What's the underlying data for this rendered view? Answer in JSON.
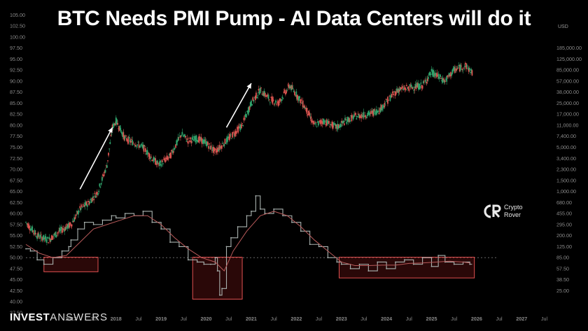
{
  "header": {
    "title": "BTC Needs PMI Pump - AI Data Centers will do it",
    "currency": "USD"
  },
  "watermark": {
    "brand_bold": "INVEST",
    "brand_thin": "ANSWERS",
    "logo_line1": "Crypto",
    "logo_line2": "Rover"
  },
  "colors": {
    "background": "#000000",
    "candle_up": "#2fa36b",
    "candle_down": "#d9534f",
    "pmi_line": "#aab3b0",
    "pmi_ma": "#b85a5a",
    "box_stroke": "#e05050",
    "box_fill": "rgba(150,30,30,0.28)",
    "arrow": "#ffffff",
    "axis_text": "#8a8a8a"
  },
  "chart_data": {
    "type": "line",
    "title": "BTC Needs PMI Pump - AI Data Centers will do it",
    "x_axis": {
      "ticks": [
        "2017",
        "Jul",
        "2018",
        "Jul",
        "2019",
        "Jul",
        "2020",
        "Jul",
        "2021",
        "Jul",
        "2022",
        "Jul",
        "2023",
        "Jul",
        "2024",
        "Jul",
        "2025",
        "Jul",
        "2026",
        "Jul",
        "2027",
        "Jul"
      ],
      "tick_x": [
        2017.0,
        2017.5,
        2018.0,
        2018.5,
        2019.0,
        2019.5,
        2020.0,
        2020.5,
        2021.0,
        2021.5,
        2022.0,
        2022.5,
        2023.0,
        2023.5,
        2024.0,
        2024.5,
        2025.0,
        2025.5,
        2026.0,
        2026.5,
        2027.0,
        2027.5
      ],
      "range": [
        2016.0,
        2027.85
      ]
    },
    "left_axis": {
      "label": "PMI",
      "range": [
        37.5,
        106.0
      ],
      "ticks": [
        105.0,
        102.5,
        100.0,
        97.5,
        95.0,
        92.5,
        90.0,
        87.5,
        85.0,
        82.5,
        80.0,
        77.5,
        75.0,
        72.5,
        70.0,
        67.5,
        65.0,
        62.5,
        60.0,
        57.5,
        55.0,
        52.5,
        50.0,
        47.5,
        45.0,
        42.5,
        40.0,
        37.5
      ],
      "reference_line": 50
    },
    "right_axis": {
      "label": "BTC price (USD, log scale)",
      "scale": "log",
      "ticks": [
        "185,000.00",
        "125,000.00",
        "85,000.00",
        "57,000.00",
        "38,000.00",
        "25,000.00",
        "17,000.00",
        "11,000.00",
        "7,400.00",
        "5,000.00",
        "3,400.00",
        "2,300.00",
        "1,500.00",
        "1,000.00",
        "680.00",
        "455.00",
        "295.00",
        "200.00",
        "125.00",
        "85.00",
        "57.50",
        "38.50",
        "25.00"
      ],
      "tick_values": [
        185000,
        125000,
        85000,
        57000,
        38000,
        25000,
        17000,
        11000,
        7400,
        5000,
        3400,
        2300,
        1500,
        1000,
        680,
        455,
        295,
        200,
        125,
        85,
        57.5,
        38.5,
        25
      ],
      "tick_y_left_scale": [
        97.5,
        95.0,
        92.5,
        90.0,
        87.5,
        85.0,
        82.5,
        80.0,
        77.5,
        75.0,
        72.5,
        70.0,
        67.5,
        65.0,
        62.5,
        60.0,
        57.5,
        55.0,
        52.5,
        50.0,
        47.5,
        45.0,
        42.5
      ]
    },
    "series": [
      {
        "name": "BTC Price (candles)",
        "type": "candlestick",
        "x": [
          2016.0,
          2016.25,
          2016.5,
          2016.75,
          2017.0,
          2017.2,
          2017.4,
          2017.6,
          2017.8,
          2017.92,
          2018.0,
          2018.2,
          2018.4,
          2018.6,
          2018.8,
          2018.95,
          2019.2,
          2019.45,
          2019.6,
          2019.8,
          2020.0,
          2020.2,
          2020.4,
          2020.6,
          2020.8,
          2021.0,
          2021.2,
          2021.4,
          2021.6,
          2021.85,
          2022.0,
          2022.2,
          2022.4,
          2022.6,
          2022.9,
          2023.1,
          2023.3,
          2023.6,
          2023.85,
          2024.1,
          2024.25,
          2024.5,
          2024.8,
          2025.0,
          2025.3,
          2025.5,
          2025.75,
          2025.9
        ],
        "values": [
          58,
          55,
          54,
          56,
          57.5,
          61,
          62.5,
          65,
          71,
          79.5,
          81,
          77,
          76,
          75,
          72.5,
          71,
          73,
          78,
          76.5,
          77,
          76,
          74,
          76,
          78,
          80,
          85,
          88,
          86,
          85,
          89,
          87,
          84,
          80,
          81,
          79.5,
          81,
          82,
          82.5,
          83.5,
          86.5,
          88,
          88.5,
          89,
          92,
          90,
          92.5,
          93.5,
          92
        ]
      },
      {
        "name": "PMI",
        "type": "step",
        "x": [
          2016.0,
          2016.1,
          2016.25,
          2016.4,
          2016.6,
          2016.8,
          2016.95,
          2017.0,
          2017.15,
          2017.3,
          2017.5,
          2017.7,
          2017.9,
          2018.0,
          2018.2,
          2018.4,
          2018.6,
          2018.8,
          2019.0,
          2019.2,
          2019.4,
          2019.6,
          2019.8,
          2019.95,
          2020.1,
          2020.2,
          2020.25,
          2020.3,
          2020.35,
          2020.45,
          2020.55,
          2020.7,
          2020.9,
          2021.0,
          2021.1,
          2021.2,
          2021.3,
          2021.5,
          2021.7,
          2021.9,
          2022.1,
          2022.3,
          2022.5,
          2022.7,
          2022.9,
          2023.0,
          2023.2,
          2023.4,
          2023.6,
          2023.8,
          2024.0,
          2024.2,
          2024.4,
          2024.6,
          2024.8,
          2025.0,
          2025.15,
          2025.3,
          2025.5,
          2025.7,
          2025.85
        ],
        "values": [
          52,
          51.5,
          49.5,
          48.5,
          50,
          51.5,
          52.5,
          54,
          56.5,
          58,
          57.5,
          58.5,
          59.5,
          59,
          60,
          59.5,
          60.5,
          58,
          56.5,
          53.5,
          52.5,
          49.5,
          49,
          48.5,
          48.5,
          50,
          47,
          41.5,
          43,
          52.5,
          54.5,
          57,
          59.5,
          60.5,
          64,
          61,
          60,
          61,
          59.5,
          58,
          56,
          53,
          52.5,
          50,
          49,
          48.5,
          47.5,
          48.5,
          47,
          49,
          47.5,
          49,
          49.5,
          48.5,
          50,
          48,
          50.5,
          49,
          48.5,
          49,
          48.5
        ]
      },
      {
        "name": "PMI moving average",
        "type": "line",
        "x": [
          2016.0,
          2016.3,
          2016.6,
          2016.9,
          2017.2,
          2017.5,
          2017.8,
          2018.1,
          2018.4,
          2018.7,
          2019.0,
          2019.3,
          2019.6,
          2019.9,
          2020.2,
          2020.4,
          2020.6,
          2020.9,
          2021.2,
          2021.5,
          2021.8,
          2022.1,
          2022.4,
          2022.7,
          2023.0,
          2023.3,
          2023.6,
          2023.9,
          2024.2,
          2024.5,
          2024.8,
          2025.1,
          2025.4,
          2025.7,
          2025.85
        ],
        "values": [
          53,
          51,
          50,
          50.5,
          53.5,
          56.5,
          57.5,
          58.5,
          59.5,
          59.5,
          57.5,
          54.5,
          52,
          50,
          49,
          47,
          51.5,
          56,
          59.5,
          60.5,
          59.5,
          57,
          54,
          51.5,
          49,
          48.2,
          48.2,
          48.3,
          48.3,
          48.7,
          48.8,
          49,
          49.2,
          49,
          48.8
        ]
      }
    ],
    "annotations": {
      "arrows": [
        {
          "label": "",
          "from": [
            2017.2,
            65.5
          ],
          "to": [
            2017.92,
            79.5
          ]
        },
        {
          "label": "",
          "from": [
            2020.45,
            79.5
          ],
          "to": [
            2021.0,
            89.5
          ]
        }
      ],
      "boxes": [
        {
          "label": "",
          "x": [
            2016.4,
            2017.6
          ],
          "y": [
            46.8,
            50.1
          ]
        },
        {
          "label": "",
          "x": [
            2019.7,
            2020.8
          ],
          "y": [
            40.6,
            50.1
          ]
        },
        {
          "label": "",
          "x": [
            2022.95,
            2025.95
          ],
          "y": [
            45.4,
            50.1
          ]
        }
      ]
    }
  }
}
